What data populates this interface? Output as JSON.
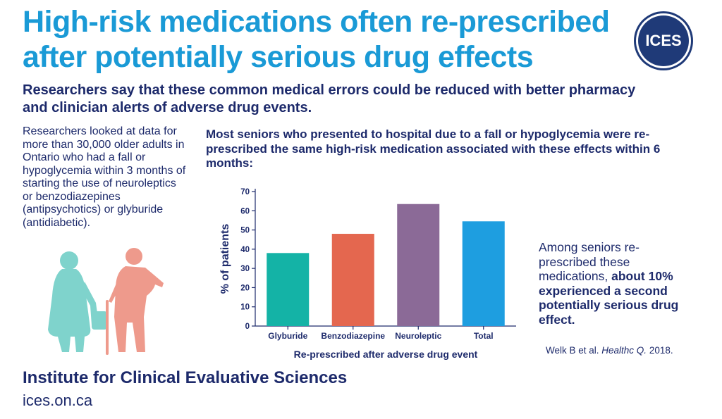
{
  "header": {
    "title_line1": "High-risk medications often re-prescribed",
    "title_line2": "after potentially serious drug effects",
    "logo_text": "ICES",
    "subtitle": "Researchers say that these common medical errors could be reduced with better pharmacy and clinician alerts of adverse drug events."
  },
  "intro": "Researchers looked at data for more than 30,000 older adults in Ontario who had a fall or hypoglycemia within 3 months of starting the use of neuroleptics or benzodiazepines (antipsychotics) or glyburide (antidiabetic).",
  "chart_heading": "Most seniors who presented to hospital due to a fall or hypoglycemia were re-prescribed the same high-risk medication associated with these effects within 6 months:",
  "side_note": {
    "plain": "Among seniors re-prescribed these medications, ",
    "bold": "about 10% experienced a second potentially serious drug effect."
  },
  "citation": {
    "authors": "Welk B et al. ",
    "journal": "Healthc Q.",
    "year": " 2018."
  },
  "footer": {
    "org": "Institute for Clinical Evaluative Sciences",
    "url": "ices.on.ca"
  },
  "colors": {
    "title_blue": "#1a9ad6",
    "navy": "#1d2a6b",
    "glyburide": "#14b3a6",
    "benzodiazepine": "#e4674f",
    "neuroleptic": "#8b6a97",
    "total": "#1e9ee0",
    "figure_left": "#7fd3cc",
    "figure_right": "#ee9a8c"
  },
  "chart_data": {
    "type": "bar",
    "categories": [
      "Glyburide",
      "Benzodiazepine",
      "Neuroleptic",
      "Total"
    ],
    "values": [
      38,
      48,
      63.5,
      54.5
    ],
    "colors": [
      "#14b3a6",
      "#e4674f",
      "#8b6a97",
      "#1e9ee0"
    ],
    "ylabel": "% of patients",
    "xlabel": "Re-prescribed after adverse drug event",
    "ylim": [
      0,
      70
    ],
    "yticks": [
      0,
      10,
      20,
      30,
      40,
      50,
      60,
      70
    ],
    "grid": false,
    "legend": "none"
  }
}
